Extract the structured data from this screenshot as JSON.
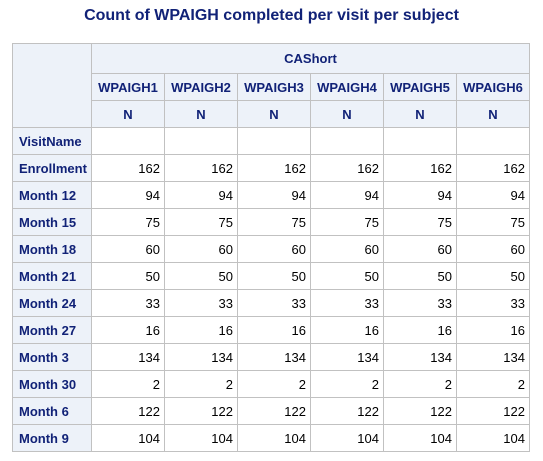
{
  "title": "Count of WPAIGH completed per visit per subject",
  "table": {
    "group_header": "CAShort",
    "columns": [
      "WPAIGH1",
      "WPAIGH2",
      "WPAIGH3",
      "WPAIGH4",
      "WPAIGH5",
      "WPAIGH6"
    ],
    "stat_labels": [
      "N",
      "N",
      "N",
      "N",
      "N",
      "N"
    ],
    "row_header_label": "VisitName",
    "rows": [
      {
        "label": "Enrollment",
        "values": [
          "162",
          "162",
          "162",
          "162",
          "162",
          "162"
        ]
      },
      {
        "label": "Month 12",
        "values": [
          "94",
          "94",
          "94",
          "94",
          "94",
          "94"
        ]
      },
      {
        "label": "Month 15",
        "values": [
          "75",
          "75",
          "75",
          "75",
          "75",
          "75"
        ]
      },
      {
        "label": "Month 18",
        "values": [
          "60",
          "60",
          "60",
          "60",
          "60",
          "60"
        ]
      },
      {
        "label": "Month 21",
        "values": [
          "50",
          "50",
          "50",
          "50",
          "50",
          "50"
        ]
      },
      {
        "label": "Month 24",
        "values": [
          "33",
          "33",
          "33",
          "33",
          "33",
          "33"
        ]
      },
      {
        "label": "Month 27",
        "values": [
          "16",
          "16",
          "16",
          "16",
          "16",
          "16"
        ]
      },
      {
        "label": "Month 3",
        "values": [
          "134",
          "134",
          "134",
          "134",
          "134",
          "134"
        ]
      },
      {
        "label": "Month 30",
        "values": [
          "2",
          "2",
          "2",
          "2",
          "2",
          "2"
        ]
      },
      {
        "label": "Month 6",
        "values": [
          "122",
          "122",
          "122",
          "122",
          "122",
          "122"
        ]
      },
      {
        "label": "Month 9",
        "values": [
          "104",
          "104",
          "104",
          "104",
          "104",
          "104"
        ]
      }
    ]
  },
  "colors": {
    "header_background": "#edf2f9",
    "header_text": "#112277",
    "border": "#c1c1c1"
  }
}
